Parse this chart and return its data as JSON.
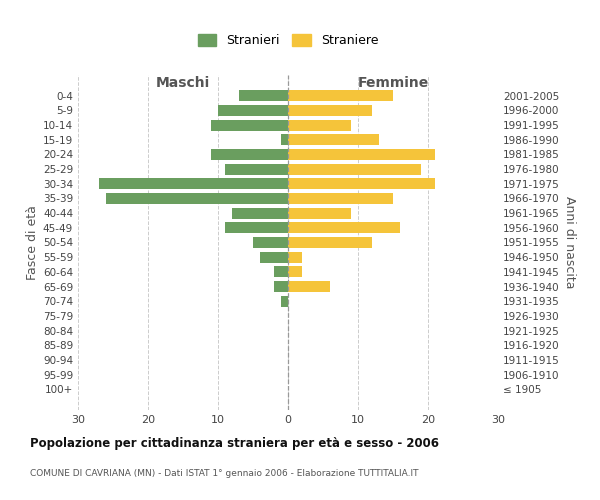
{
  "age_groups": [
    "0-4",
    "5-9",
    "10-14",
    "15-19",
    "20-24",
    "25-29",
    "30-34",
    "35-39",
    "40-44",
    "45-49",
    "50-54",
    "55-59",
    "60-64",
    "65-69",
    "70-74",
    "75-79",
    "80-84",
    "85-89",
    "90-94",
    "95-99",
    "100+"
  ],
  "birth_years": [
    "2001-2005",
    "1996-2000",
    "1991-1995",
    "1986-1990",
    "1981-1985",
    "1976-1980",
    "1971-1975",
    "1966-1970",
    "1961-1965",
    "1956-1960",
    "1951-1955",
    "1946-1950",
    "1941-1945",
    "1936-1940",
    "1931-1935",
    "1926-1930",
    "1921-1925",
    "1916-1920",
    "1911-1915",
    "1906-1910",
    "≤ 1905"
  ],
  "males": [
    7,
    10,
    11,
    1,
    11,
    9,
    27,
    26,
    8,
    9,
    5,
    4,
    2,
    2,
    1,
    0,
    0,
    0,
    0,
    0,
    0
  ],
  "females": [
    15,
    12,
    9,
    13,
    21,
    19,
    21,
    15,
    9,
    16,
    12,
    2,
    2,
    6,
    0,
    0,
    0,
    0,
    0,
    0,
    0
  ],
  "male_color": "#6a9e5f",
  "female_color": "#f5c43a",
  "background_color": "#ffffff",
  "grid_color": "#cccccc",
  "title": "Popolazione per cittadinanza straniera per età e sesso - 2006",
  "subtitle": "COMUNE DI CAVRIANA (MN) - Dati ISTAT 1° gennaio 2006 - Elaborazione TUTTITALIA.IT",
  "ylabel_left": "Fasce di età",
  "ylabel_right": "Anni di nascita",
  "xlabel_left": "Maschi",
  "xlabel_right": "Femmine",
  "legend_male": "Stranieri",
  "legend_female": "Straniere",
  "xlim": 30
}
